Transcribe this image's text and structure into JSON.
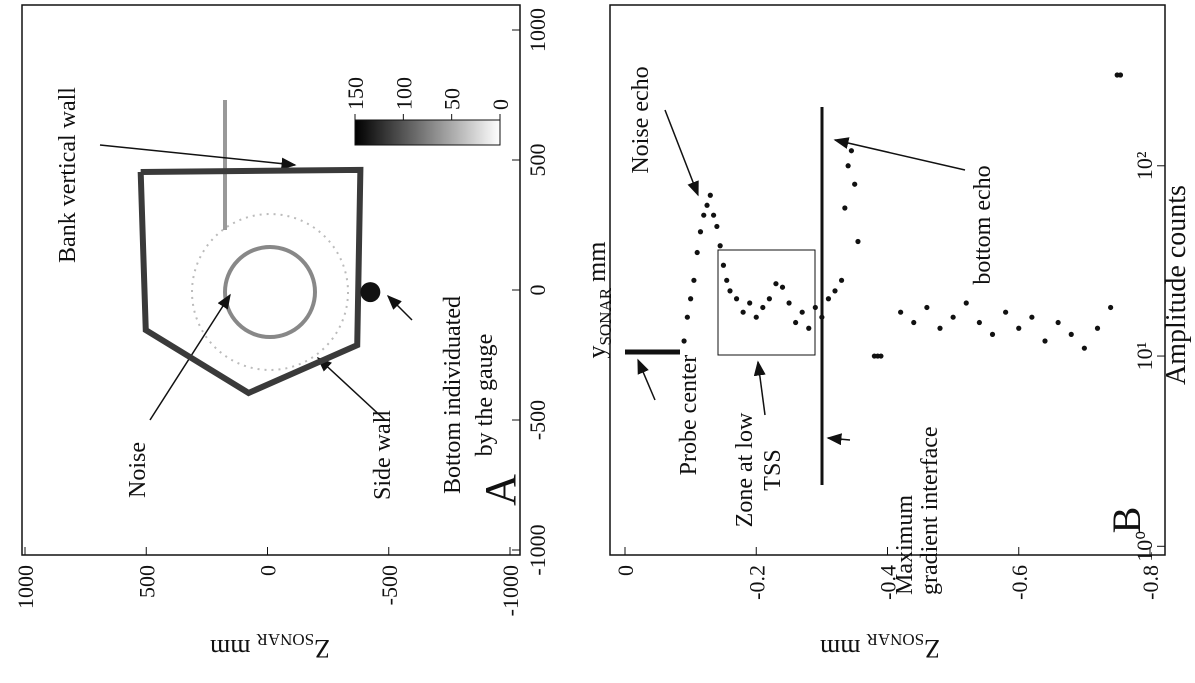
{
  "chart_data": [
    {
      "type": "line",
      "panel_label": "A",
      "ylabel": {
        "main": "Z",
        "sub": "SONAR",
        "unit": "mm"
      },
      "xlim": [
        1000,
        -1000
      ],
      "xticks": [
        1000,
        500,
        0,
        -500,
        -1000
      ],
      "ylim": [
        -1000,
        1000
      ],
      "yticks": [
        -1000,
        -500,
        0,
        500,
        1000
      ],
      "x": [
        523,
        502,
        78,
        -370,
        -383,
        523
      ],
      "y": [
        454,
        -154,
        -396,
        -212,
        462,
        454
      ],
      "color": "#3a3a3a",
      "marker": {
        "x": -424,
        "y": -8
      },
      "colorbar": {
        "lim": [
          150,
          0
        ],
        "ticks": [
          150,
          100,
          50,
          0
        ]
      },
      "annotations": [
        "Bank vertical wall",
        "Noise",
        "Side wall",
        "Bottom individuated",
        "by the gauge"
      ]
    },
    {
      "type": "scatter",
      "panel_label": "B",
      "ylabel": {
        "main": "Z",
        "sub": "SONAR",
        "unit": "mm"
      },
      "xlabel": {
        "main": "y",
        "sub": "SONAR",
        "unit": "mm"
      },
      "y2label": "Amplitude counts",
      "xlim": [
        0,
        -0.8
      ],
      "xticks": [
        0,
        -0.2,
        -0.4,
        -0.6,
        -0.8
      ],
      "ylim": [
        0.9,
        700
      ],
      "ylog": true,
      "yticks": [
        {
          "value": 1,
          "label": "10⁰"
        },
        {
          "value": 10,
          "label": "10¹"
        },
        {
          "value": 100,
          "label": "10²"
        }
      ],
      "x": [
        -0.09,
        -0.095,
        -0.1,
        -0.105,
        -0.11,
        -0.115,
        -0.12,
        -0.125,
        -0.13,
        -0.135,
        -0.14,
        -0.145,
        -0.15,
        -0.155,
        -0.16,
        -0.17,
        -0.18,
        -0.19,
        -0.2,
        -0.21,
        -0.22,
        -0.23,
        -0.24,
        -0.25,
        -0.26,
        -0.27,
        -0.28,
        -0.29,
        -0.3,
        -0.31,
        -0.32,
        -0.33,
        -0.335,
        -0.34,
        -0.345,
        -0.35,
        -0.355,
        -0.38,
        -0.385,
        -0.39,
        -0.42,
        -0.44,
        -0.46,
        -0.48,
        -0.5,
        -0.52,
        -0.54,
        -0.56,
        -0.58,
        -0.6,
        -0.62,
        -0.64,
        -0.66,
        -0.68,
        -0.7,
        -0.72,
        -0.74,
        -0.75,
        -0.755
      ],
      "y": [
        12,
        16,
        20,
        25,
        35,
        45,
        55,
        62,
        70,
        55,
        48,
        38,
        30,
        25,
        22,
        20,
        17,
        19,
        16,
        18,
        20,
        24,
        23,
        19,
        15,
        17,
        14,
        18,
        16,
        20,
        22,
        25,
        60,
        100,
        120,
        80,
        40,
        10,
        10,
        10,
        17,
        15,
        18,
        14,
        16,
        19,
        15,
        13,
        17,
        14,
        16,
        12,
        15,
        13,
        11,
        14,
        18,
        300,
        300
      ],
      "color": "#111111",
      "annotations": [
        "Noise echo",
        "Probe center",
        "Zone at low",
        "TSS",
        "Maximum",
        "gradient interface",
        "bottom echo"
      ]
    }
  ]
}
